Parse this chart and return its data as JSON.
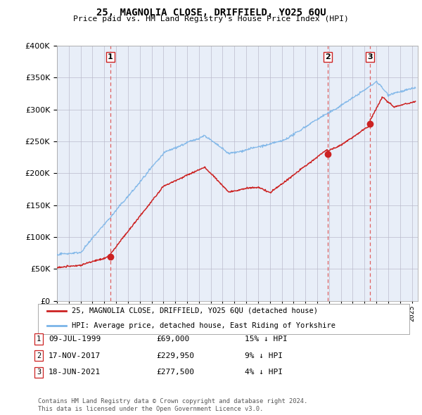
{
  "title": "25, MAGNOLIA CLOSE, DRIFFIELD, YO25 6QU",
  "subtitle": "Price paid vs. HM Land Registry's House Price Index (HPI)",
  "ylim": [
    0,
    400000
  ],
  "yticks": [
    0,
    50000,
    100000,
    150000,
    200000,
    250000,
    300000,
    350000,
    400000
  ],
  "purchases": [
    {
      "date_num": 1999.52,
      "price": 69000,
      "label": "1"
    },
    {
      "date_num": 2017.88,
      "price": 229950,
      "label": "2"
    },
    {
      "date_num": 2021.46,
      "price": 277500,
      "label": "3"
    }
  ],
  "hpi_color": "#7ab4e8",
  "price_color": "#cc2222",
  "vline_color": "#e06060",
  "grid_color": "#bbbbcc",
  "chart_bg": "#e8eef8",
  "background_color": "#ffffff",
  "legend_entries": [
    "25, MAGNOLIA CLOSE, DRIFFIELD, YO25 6QU (detached house)",
    "HPI: Average price, detached house, East Riding of Yorkshire"
  ],
  "table_entries": [
    {
      "num": "1",
      "date": "09-JUL-1999",
      "price": "£69,000",
      "rel": "15% ↓ HPI"
    },
    {
      "num": "2",
      "date": "17-NOV-2017",
      "price": "£229,950",
      "rel": "9% ↓ HPI"
    },
    {
      "num": "3",
      "date": "18-JUN-2021",
      "price": "£277,500",
      "rel": "4% ↓ HPI"
    }
  ],
  "footer": "Contains HM Land Registry data © Crown copyright and database right 2024.\nThis data is licensed under the Open Government Licence v3.0.",
  "xmin": 1995.0,
  "xmax": 2025.5
}
